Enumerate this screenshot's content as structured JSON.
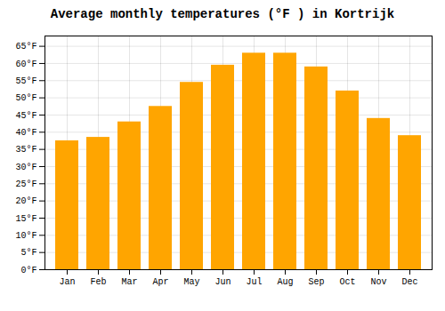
{
  "chart_data": {
    "type": "bar",
    "title": "Average monthly temperatures (°F ) in Kortrijk",
    "categories": [
      "Jan",
      "Feb",
      "Mar",
      "Apr",
      "May",
      "Jun",
      "Jul",
      "Aug",
      "Sep",
      "Oct",
      "Nov",
      "Dec"
    ],
    "values": [
      37.5,
      38.5,
      43,
      47.5,
      54.5,
      59.5,
      63,
      63,
      59,
      52,
      44,
      39
    ],
    "color": "#FFA500",
    "ylim": [
      0,
      68
    ],
    "yticks": [
      {
        "value": 0,
        "label": "0°F"
      },
      {
        "value": 5,
        "label": "5°F"
      },
      {
        "value": 10,
        "label": "10°F"
      },
      {
        "value": 15,
        "label": "15°F"
      },
      {
        "value": 20,
        "label": "20°F"
      },
      {
        "value": 25,
        "label": "25°F"
      },
      {
        "value": 30,
        "label": "30°F"
      },
      {
        "value": 35,
        "label": "35°F"
      },
      {
        "value": 40,
        "label": "40°F"
      },
      {
        "value": 45,
        "label": "45°F"
      },
      {
        "value": 50,
        "label": "50°F"
      },
      {
        "value": 55,
        "label": "55°F"
      },
      {
        "value": 60,
        "label": "60°F"
      },
      {
        "value": 65,
        "label": "65°F"
      }
    ],
    "grid": true
  }
}
